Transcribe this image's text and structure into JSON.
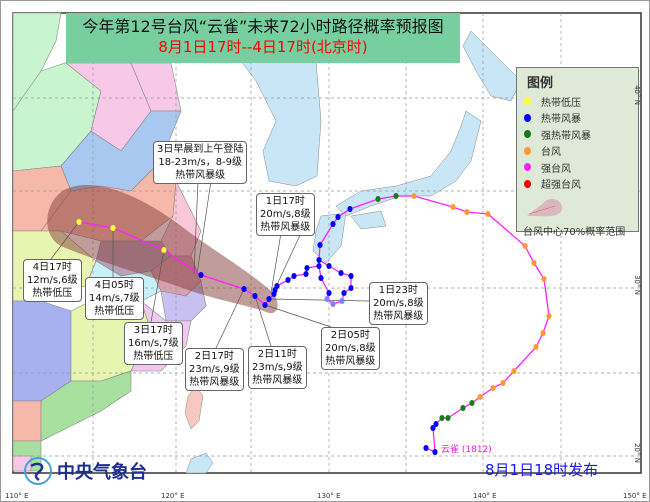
{
  "title": "今年第12号台风“云雀”未来72小时路径概率预报图",
  "subtitle": "8月1日17时--4日17时(北京时)",
  "legend": {
    "heading": "图例",
    "items": [
      {
        "label": "热带低压",
        "color": "#ffff33"
      },
      {
        "label": "热带风暴",
        "color": "#0000ff"
      },
      {
        "label": "强热带风暴",
        "color": "#1a7a1a"
      },
      {
        "label": "台风",
        "color": "#ff9933"
      },
      {
        "label": "强台风",
        "color": "#ff22ff"
      },
      {
        "label": "超强台风",
        "color": "#ff0000"
      }
    ],
    "cone_label": "台风中心70%概率范围"
  },
  "annotations": [
    {
      "lines": [
        "3日早晨到上午登陆",
        "18-23m/s，8-9级",
        "热带风暴级"
      ]
    },
    {
      "lines": [
        "1日17时",
        "20m/s,8级",
        "热带风暴级"
      ]
    },
    {
      "lines": [
        "4日17时",
        "12m/s,6级",
        "热带低压"
      ]
    },
    {
      "lines": [
        "4日05时",
        "14m/s,7级",
        "热带低压"
      ]
    },
    {
      "lines": [
        "3日17时",
        "16m/s,7级",
        "热带低压"
      ]
    },
    {
      "lines": [
        "2日17时",
        "23m/s,9级",
        "热带风暴级"
      ]
    },
    {
      "lines": [
        "2日11时",
        "23m/s,9级",
        "热带风暴级"
      ]
    },
    {
      "lines": [
        "2日05时",
        "20m/s,8级",
        "热带风暴级"
      ]
    },
    {
      "lines": [
        "1日23时",
        "20m/s,8级",
        "热带风暴级"
      ]
    }
  ],
  "typhoon_name": "云雀 (1812)",
  "agency": "中央气象台",
  "issued": "8月1日18时发布",
  "axes": {
    "lon_labels": [
      "110° E",
      "120° E",
      "130° E",
      "140° E",
      "150° E"
    ],
    "lat_labels": [
      "40° N",
      "30° N",
      "20° N"
    ]
  },
  "colors": {
    "track_line": "#ff22ff",
    "cone": "#8b4a45",
    "banner": "#77cfa0"
  }
}
